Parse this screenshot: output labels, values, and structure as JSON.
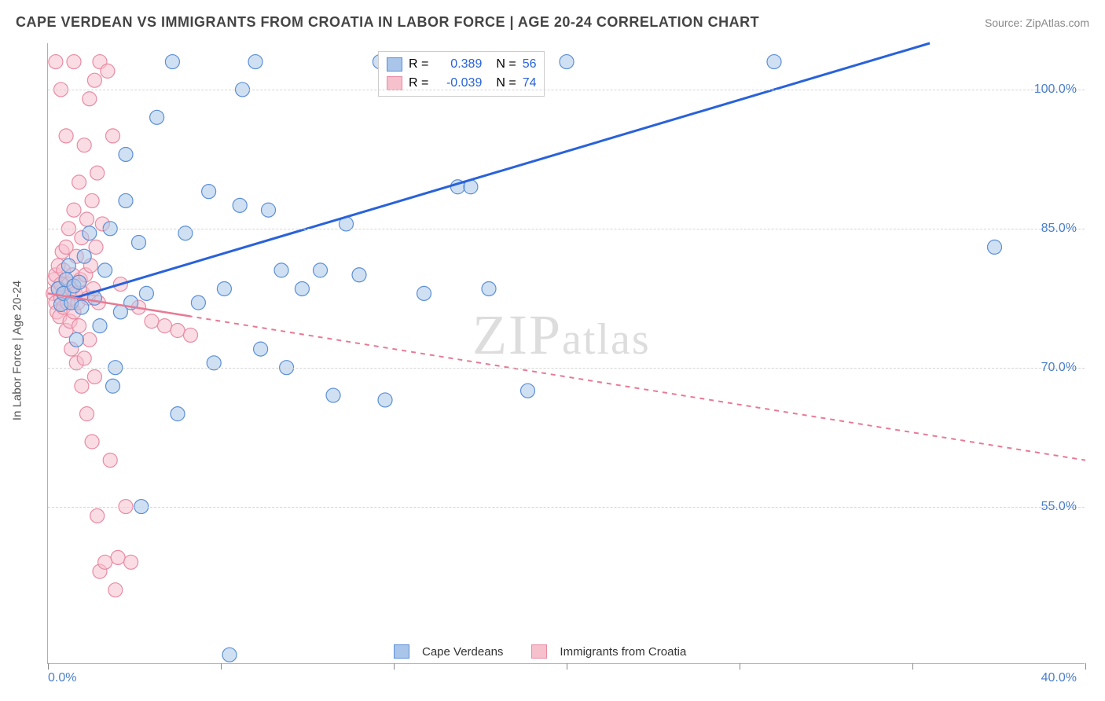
{
  "title": "CAPE VERDEAN VS IMMIGRANTS FROM CROATIA IN LABOR FORCE | AGE 20-24 CORRELATION CHART",
  "source": "Source: ZipAtlas.com",
  "ylabel": "In Labor Force | Age 20-24",
  "watermark": "ZIPatlas",
  "chart": {
    "type": "scatter",
    "background_color": "#ffffff",
    "grid_color": "#d5d5d5",
    "axis_color": "#b0b0b0",
    "label_color": "#4a7ec9",
    "text_color": "#555555",
    "title_color": "#444444",
    "title_fontsize": 18,
    "label_fontsize": 15,
    "tick_fontsize": 16,
    "xlim": [
      0,
      40
    ],
    "ylim": [
      38,
      105
    ],
    "xtick_labels": [
      "0.0%",
      "40.0%"
    ],
    "xtick_positions": [
      0,
      6.67,
      13.33,
      20,
      26.67,
      33.33,
      40
    ],
    "ytick_labels": [
      "55.0%",
      "70.0%",
      "85.0%",
      "100.0%"
    ],
    "ytick_values": [
      55,
      70,
      85,
      100
    ],
    "marker_radius": 9,
    "marker_opacity": 0.55,
    "series": [
      {
        "name": "Cape Verdeans",
        "fill_color": "#a9c6ea",
        "stroke_color": "#5b8fd6",
        "line_color": "#2962d9",
        "line_width": 3,
        "line_dash": "none",
        "R": "0.389",
        "N": "56",
        "trend": {
          "x1": 1.0,
          "y1": 77.5,
          "x2": 34.0,
          "y2": 105.0
        },
        "points": [
          [
            0.4,
            78.5
          ],
          [
            0.5,
            76.8
          ],
          [
            0.6,
            78.0
          ],
          [
            0.7,
            79.5
          ],
          [
            0.9,
            77.0
          ],
          [
            1.0,
            78.8
          ],
          [
            1.2,
            79.2
          ],
          [
            1.3,
            76.5
          ],
          [
            1.4,
            82.0
          ],
          [
            1.6,
            84.5
          ],
          [
            1.8,
            77.5
          ],
          [
            2.0,
            74.5
          ],
          [
            2.2,
            80.5
          ],
          [
            2.4,
            85.0
          ],
          [
            2.6,
            70.0
          ],
          [
            2.8,
            76.0
          ],
          [
            3.0,
            88.0
          ],
          [
            3.2,
            77.0
          ],
          [
            3.5,
            83.5
          ],
          [
            3.6,
            55.0
          ],
          [
            3.8,
            78.0
          ],
          [
            4.2,
            97.0
          ],
          [
            4.8,
            103.0
          ],
          [
            5.0,
            65.0
          ],
          [
            5.3,
            84.5
          ],
          [
            5.8,
            77.0
          ],
          [
            6.2,
            89.0
          ],
          [
            6.4,
            70.5
          ],
          [
            6.8,
            78.5
          ],
          [
            7.0,
            39.0
          ],
          [
            7.4,
            87.5
          ],
          [
            7.5,
            100.0
          ],
          [
            8.0,
            103.0
          ],
          [
            8.2,
            72.0
          ],
          [
            8.5,
            87.0
          ],
          [
            9.0,
            80.5
          ],
          [
            9.2,
            70.0
          ],
          [
            9.8,
            78.5
          ],
          [
            10.5,
            80.5
          ],
          [
            11.0,
            67.0
          ],
          [
            11.5,
            85.5
          ],
          [
            12.0,
            80.0
          ],
          [
            12.8,
            103.0
          ],
          [
            13.0,
            66.5
          ],
          [
            14.5,
            78.0
          ],
          [
            15.8,
            89.5
          ],
          [
            16.3,
            89.5
          ],
          [
            17.0,
            78.5
          ],
          [
            18.5,
            67.5
          ],
          [
            20.0,
            103.0
          ],
          [
            28.0,
            103.0
          ],
          [
            36.5,
            83.0
          ],
          [
            3.0,
            93.0
          ],
          [
            2.5,
            68.0
          ],
          [
            1.1,
            73.0
          ],
          [
            0.8,
            81.0
          ]
        ]
      },
      {
        "name": "Immigrants from Croatia",
        "fill_color": "#f6c0cd",
        "stroke_color": "#e88ba3",
        "line_color": "#e77a95",
        "line_width": 2,
        "line_dash": "6,6",
        "R": "-0.039",
        "N": "74",
        "trend": {
          "x1": 0.0,
          "y1": 78.0,
          "x2": 40.0,
          "y2": 60.0
        },
        "points": [
          [
            0.2,
            78.0
          ],
          [
            0.25,
            79.5
          ],
          [
            0.3,
            77.0
          ],
          [
            0.3,
            80.0
          ],
          [
            0.35,
            76.0
          ],
          [
            0.4,
            78.5
          ],
          [
            0.4,
            81.0
          ],
          [
            0.45,
            75.5
          ],
          [
            0.5,
            79.0
          ],
          [
            0.5,
            77.5
          ],
          [
            0.55,
            82.5
          ],
          [
            0.6,
            76.5
          ],
          [
            0.6,
            80.5
          ],
          [
            0.65,
            78.0
          ],
          [
            0.7,
            74.0
          ],
          [
            0.7,
            83.0
          ],
          [
            0.75,
            77.0
          ],
          [
            0.8,
            79.0
          ],
          [
            0.8,
            85.0
          ],
          [
            0.85,
            75.0
          ],
          [
            0.9,
            78.5
          ],
          [
            0.9,
            72.0
          ],
          [
            0.95,
            80.0
          ],
          [
            1.0,
            76.0
          ],
          [
            1.0,
            87.0
          ],
          [
            1.05,
            78.0
          ],
          [
            1.1,
            70.5
          ],
          [
            1.1,
            82.0
          ],
          [
            1.15,
            77.0
          ],
          [
            1.2,
            90.0
          ],
          [
            1.2,
            74.5
          ],
          [
            1.25,
            79.5
          ],
          [
            1.3,
            68.0
          ],
          [
            1.3,
            84.0
          ],
          [
            1.35,
            78.0
          ],
          [
            1.4,
            94.0
          ],
          [
            1.4,
            71.0
          ],
          [
            1.45,
            80.0
          ],
          [
            1.5,
            65.0
          ],
          [
            1.5,
            86.0
          ],
          [
            1.55,
            77.5
          ],
          [
            1.6,
            99.0
          ],
          [
            1.6,
            73.0
          ],
          [
            1.65,
            81.0
          ],
          [
            1.7,
            62.0
          ],
          [
            1.7,
            88.0
          ],
          [
            1.75,
            78.5
          ],
          [
            1.8,
            101.0
          ],
          [
            1.8,
            69.0
          ],
          [
            1.85,
            83.0
          ],
          [
            1.9,
            54.0
          ],
          [
            1.9,
            91.0
          ],
          [
            1.95,
            77.0
          ],
          [
            2.0,
            103.0
          ],
          [
            2.0,
            48.0
          ],
          [
            2.1,
            85.5
          ],
          [
            2.2,
            49.0
          ],
          [
            2.3,
            102.0
          ],
          [
            2.4,
            60.0
          ],
          [
            2.5,
            95.0
          ],
          [
            2.6,
            46.0
          ],
          [
            2.7,
            49.5
          ],
          [
            2.8,
            79.0
          ],
          [
            3.0,
            55.0
          ],
          [
            3.2,
            49.0
          ],
          [
            3.5,
            76.5
          ],
          [
            4.0,
            75.0
          ],
          [
            4.5,
            74.5
          ],
          [
            5.0,
            74.0
          ],
          [
            5.5,
            73.5
          ],
          [
            0.3,
            103.0
          ],
          [
            0.5,
            100.0
          ],
          [
            0.7,
            95.0
          ],
          [
            1.0,
            103.0
          ]
        ]
      }
    ],
    "legend_bottom": {
      "items": [
        "Cape Verdeans",
        "Immigrants from Croatia"
      ]
    }
  }
}
